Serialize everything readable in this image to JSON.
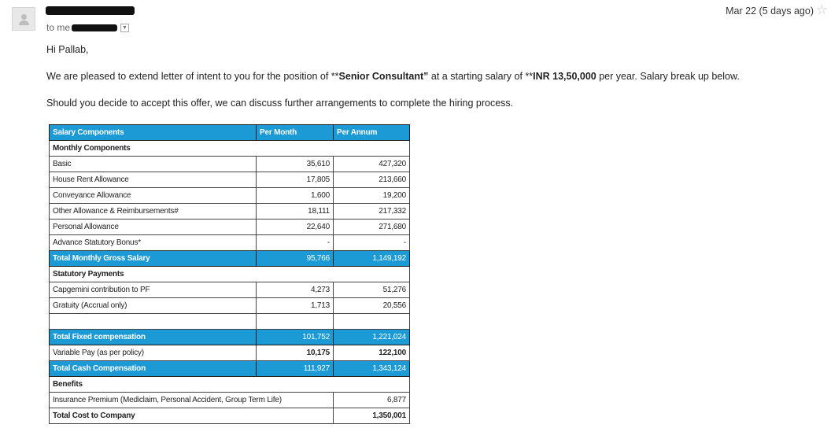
{
  "header": {
    "to_label": "to me",
    "date": "Mar 22 (5 days ago)"
  },
  "body": {
    "greeting": "Hi Pallab,",
    "offer_pre": "We are pleased to extend letter of intent to you for the position of **",
    "position": "Senior Consultant”",
    "offer_mid": " at a starting salary of **",
    "salary": "INR 13,50,000",
    "offer_post": " per year. Salary break up below.",
    "next_steps": "Should you decide to accept this offer, we can discuss further arrangements to complete the hiring process."
  },
  "table": {
    "header": [
      "Salary Components",
      "Per Month",
      "Per Annum"
    ],
    "rows": [
      {
        "kind": "section",
        "label": "Monthly Components",
        "month": "",
        "annum": ""
      },
      {
        "kind": "row",
        "label": "Basic",
        "month": "35,610",
        "annum": "427,320"
      },
      {
        "kind": "row",
        "label": "House Rent Allowance",
        "month": "17,805",
        "annum": "213,660"
      },
      {
        "kind": "row",
        "label": "Conveyance Allowance",
        "month": "1,600",
        "annum": "19,200"
      },
      {
        "kind": "row",
        "label": "Other Allowance & Reimbursements#",
        "month": "18,111",
        "annum": "217,332"
      },
      {
        "kind": "row",
        "label": "Personal Allowance",
        "month": "22,640",
        "annum": "271,680"
      },
      {
        "kind": "row",
        "label": "Advance Statutory Bonus*",
        "month": "-",
        "annum": "-"
      },
      {
        "kind": "blue",
        "label": "Total Monthly Gross Salary",
        "month": "95,766",
        "annum": "1,149,192"
      },
      {
        "kind": "section",
        "label": "Statutory Payments",
        "month": "",
        "annum": ""
      },
      {
        "kind": "row",
        "label": "Capgemini contribution to PF",
        "month": "4,273",
        "annum": "51,276"
      },
      {
        "kind": "row",
        "label": "Gratuity (Accrual only)",
        "month": "1,713",
        "annum": "20,556"
      },
      {
        "kind": "gap",
        "label": "",
        "month": "",
        "annum": ""
      },
      {
        "kind": "blue",
        "label": "Total Fixed compensation",
        "month": "101,752",
        "annum": "1,221,024"
      },
      {
        "kind": "boldnum",
        "label": "Variable Pay (as per policy)",
        "month": "10,175",
        "annum": "122,100"
      },
      {
        "kind": "blue",
        "label": "Total Cash Compensation",
        "month": "111,927",
        "annum": "1,343,124"
      },
      {
        "kind": "section",
        "label": "Benefits",
        "month": "",
        "annum": ""
      },
      {
        "kind": "span",
        "label": "Insurance Premium (Mediclaim, Personal Accident, Group Term Life)",
        "month": "",
        "annum": "6,877"
      },
      {
        "kind": "total",
        "label": "Total Cost to Company",
        "month": "",
        "annum": "1,350,001"
      }
    ]
  }
}
